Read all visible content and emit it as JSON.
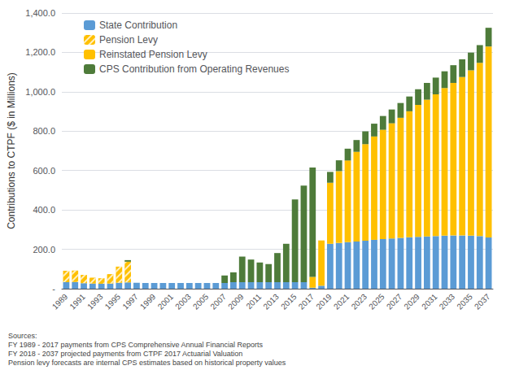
{
  "chart_data": {
    "type": "bar",
    "stacked": true,
    "categories": [
      "1989",
      null,
      "1991",
      null,
      "1993",
      null,
      "1995",
      null,
      "1997",
      null,
      "1999",
      null,
      "2001",
      null,
      "2003",
      null,
      "2005",
      null,
      "2007",
      null,
      "2009",
      null,
      "2011",
      null,
      "2013",
      null,
      "2015",
      null,
      "2017",
      null,
      "2019",
      null,
      "2021",
      null,
      "2023",
      null,
      "2025",
      null,
      "2027",
      null,
      "2029",
      null,
      "2031",
      null,
      "2033",
      null,
      "2035",
      null,
      "2037"
    ],
    "series": [
      {
        "name": "State Contribution",
        "color": "#5B9BD5",
        "values": [
          33,
          34,
          28,
          26,
          25,
          26,
          30,
          32,
          30,
          29,
          29,
          29,
          29,
          29,
          29,
          29,
          29,
          29,
          29,
          33,
          33,
          33,
          33,
          33,
          33,
          33,
          33,
          33,
          5,
          15,
          228,
          232,
          236,
          240,
          244,
          248,
          252,
          255,
          258,
          261,
          263,
          265,
          267,
          269,
          270,
          270,
          269,
          267,
          260
        ]
      },
      {
        "name": "Pension Levy",
        "color": "#FFC000",
        "values": [
          58,
          58,
          42,
          30,
          28,
          48,
          82,
          105,
          0,
          0,
          0,
          0,
          0,
          0,
          0,
          0,
          0,
          0,
          0,
          0,
          0,
          0,
          0,
          0,
          0,
          0,
          0,
          0,
          0,
          0,
          0,
          0,
          0,
          0,
          0,
          0,
          0,
          0,
          0,
          0,
          0,
          0,
          0,
          0,
          0,
          0,
          0,
          0,
          0
        ]
      },
      {
        "name": "Reinstated Pension Levy",
        "color": "#FFC000",
        "values": [
          0,
          0,
          0,
          0,
          0,
          0,
          0,
          0,
          0,
          0,
          0,
          0,
          0,
          0,
          0,
          0,
          0,
          0,
          0,
          0,
          0,
          0,
          0,
          0,
          0,
          0,
          0,
          0,
          55,
          230,
          310,
          365,
          415,
          455,
          490,
          525,
          555,
          585,
          610,
          640,
          670,
          695,
          720,
          750,
          775,
          805,
          840,
          880,
          970
        ]
      },
      {
        "name": "CPS Contribution from Operating Revenues",
        "color": "#4E7B3A",
        "values": [
          0,
          0,
          0,
          0,
          0,
          0,
          0,
          8,
          0,
          0,
          0,
          0,
          0,
          0,
          0,
          0,
          0,
          0,
          38,
          50,
          130,
          115,
          100,
          92,
          148,
          195,
          420,
          490,
          555,
          0,
          55,
          55,
          60,
          60,
          65,
          65,
          70,
          70,
          75,
          75,
          80,
          85,
          85,
          85,
          90,
          90,
          90,
          90,
          95
        ]
      }
    ],
    "y_label": "Contributions to CTPF ($ in Millions)",
    "ylim": [
      0,
      1400
    ],
    "yticks": [
      {
        "value": 0,
        "label": "-"
      },
      {
        "value": 200,
        "label": "200.0"
      },
      {
        "value": 400,
        "label": "400.0"
      },
      {
        "value": 600,
        "label": "600.0"
      },
      {
        "value": 800,
        "label": "800.0"
      },
      {
        "value": 1000,
        "label": "1,000.0"
      },
      {
        "value": 1200,
        "label": "1,200.0"
      },
      {
        "value": 1400,
        "label": "1,400.0"
      }
    ],
    "grid": true,
    "legend": "upper left",
    "annotation": "Sources:\nFY 1989 - 2017 payments from CPS Comprehensive Annual Financial Reports\nFY 2018 - 2037 projected payments from CTPF 2017 Actuarial Valuation\nPension levy forecasts are internal CPS estimates based on historical property values"
  }
}
